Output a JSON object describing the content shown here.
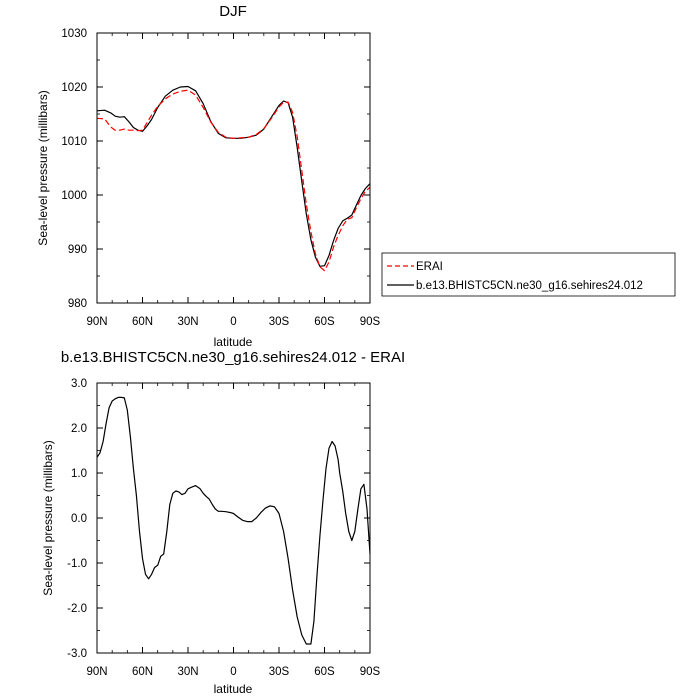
{
  "chart_data": [
    {
      "type": "line",
      "title": "DJF",
      "xlabel": "latitude",
      "ylabel": "Sea-level pressure (millibars)",
      "xlim": [
        90,
        -90
      ],
      "ylim": [
        980,
        1030
      ],
      "x_ticks": [
        90,
        60,
        30,
        0,
        -30,
        -60,
        -90
      ],
      "x_tick_labels": [
        "90N",
        "60N",
        "30N",
        "0",
        "30S",
        "60S",
        "90S"
      ],
      "y_ticks": [
        980,
        990,
        1000,
        1010,
        1020,
        1030
      ],
      "y_tick_labels": [
        "980",
        "990",
        "1000",
        "1010",
        "1020",
        "1030"
      ],
      "grid": false,
      "legend_position": "outside-right",
      "series": [
        {
          "name": "ERAI",
          "color": "#ff0000",
          "dash": "dashed",
          "x": [
            90,
            85,
            81,
            78,
            75,
            72,
            69,
            66,
            63,
            60,
            57,
            54,
            50,
            45,
            40,
            35,
            30,
            25,
            20,
            15,
            10,
            5,
            0,
            -5,
            -10,
            -15,
            -20,
            -25,
            -30,
            -33,
            -36,
            -39,
            -42,
            -45,
            -48,
            -51,
            -54,
            -57,
            -60,
            -63,
            -66,
            -69,
            -72,
            -75,
            -78,
            -81,
            -84,
            -87,
            -90
          ],
          "y": [
            1014.2,
            1014.1,
            1012.6,
            1012.0,
            1012.0,
            1012.2,
            1012.0,
            1012.0,
            1011.9,
            1012.0,
            1013.4,
            1014.8,
            1016.4,
            1017.8,
            1018.7,
            1019.2,
            1019.4,
            1018.5,
            1016.2,
            1013.5,
            1011.6,
            1010.7,
            1010.5,
            1010.6,
            1010.7,
            1011.2,
            1012.3,
            1014.2,
            1016.3,
            1017.2,
            1017.2,
            1015.3,
            1010.8,
            1004.5,
            998.3,
            993.2,
            989.1,
            986.7,
            986.0,
            987.6,
            990.4,
            992.5,
            994.3,
            995.5,
            995.8,
            997.6,
            999.3,
            1000.7,
            1001.4
          ]
        },
        {
          "name": "b.e13.BHISTC5CN.ne30_g16.sehires24.012",
          "color": "#000000",
          "dash": "solid",
          "x": [
            90,
            85,
            81,
            78,
            75,
            72,
            69,
            66,
            63,
            60,
            57,
            54,
            50,
            45,
            40,
            35,
            30,
            25,
            20,
            15,
            10,
            5,
            0,
            -5,
            -10,
            -15,
            -20,
            -25,
            -30,
            -33,
            -36,
            -39,
            -42,
            -45,
            -48,
            -51,
            -54,
            -57,
            -60,
            -63,
            -66,
            -69,
            -72,
            -75,
            -78,
            -81,
            -84,
            -87,
            -90
          ],
          "y": [
            1015.6,
            1015.7,
            1015.2,
            1014.6,
            1014.4,
            1014.5,
            1013.6,
            1012.5,
            1012.0,
            1011.8,
            1012.8,
            1014.0,
            1016.2,
            1018.3,
            1019.4,
            1020.0,
            1020.1,
            1019.3,
            1016.9,
            1013.6,
            1011.4,
            1010.6,
            1010.5,
            1010.5,
            1010.7,
            1011.1,
            1012.2,
            1014.4,
            1016.6,
            1017.4,
            1017.1,
            1014.4,
            1008.8,
            1002.5,
            996.5,
            991.7,
            988.5,
            986.8,
            986.9,
            988.8,
            991.6,
            993.8,
            995.2,
            995.7,
            996.3,
            998.1,
            999.9,
            1001.2,
            1002.1
          ]
        }
      ]
    },
    {
      "type": "line",
      "title": "b.e13.BHISTC5CN.ne30_g16.sehires24.012 - ERAI",
      "xlabel": "latitude",
      "ylabel": "Sea-level pressure (millibars)",
      "xlim": [
        90,
        -90
      ],
      "ylim": [
        -3.0,
        3.0
      ],
      "x_ticks": [
        90,
        60,
        30,
        0,
        -30,
        -60,
        -90
      ],
      "x_tick_labels": [
        "90N",
        "60N",
        "30N",
        "0",
        "30S",
        "60S",
        "90S"
      ],
      "y_ticks": [
        -3.0,
        -2.0,
        -1.0,
        0.0,
        1.0,
        2.0,
        3.0
      ],
      "y_tick_labels": [
        "-3.0",
        "-2.0",
        "-1.0",
        "0.0",
        "1.0",
        "2.0",
        "3.0"
      ],
      "grid": false,
      "series": [
        {
          "color": "#000000",
          "dash": "solid",
          "x": [
            90,
            88,
            86,
            84,
            82,
            80,
            78,
            76,
            74,
            72,
            70,
            68,
            66,
            64,
            62,
            60,
            58,
            56,
            54,
            52,
            50,
            48,
            46,
            44,
            42,
            40,
            38,
            36,
            34,
            32,
            30,
            28,
            25,
            22,
            20,
            18,
            16,
            14,
            12,
            10,
            8,
            5,
            2,
            0,
            -3,
            -6,
            -9,
            -12,
            -15,
            -18,
            -21,
            -24,
            -27,
            -30,
            -33,
            -36,
            -39,
            -42,
            -45,
            -48,
            -51,
            -53,
            -55,
            -57,
            -59,
            -61,
            -63,
            -65,
            -67,
            -68,
            -69,
            -70,
            -72,
            -74,
            -76,
            -78,
            -80,
            -82,
            -84,
            -86,
            -88,
            -90
          ],
          "y": [
            1.35,
            1.45,
            1.7,
            2.1,
            2.45,
            2.6,
            2.65,
            2.68,
            2.68,
            2.67,
            2.4,
            1.8,
            1.1,
            0.5,
            -0.3,
            -0.9,
            -1.25,
            -1.35,
            -1.25,
            -1.1,
            -1.05,
            -0.85,
            -0.8,
            -0.3,
            0.3,
            0.55,
            0.6,
            0.58,
            0.52,
            0.55,
            0.65,
            0.68,
            0.72,
            0.65,
            0.55,
            0.48,
            0.42,
            0.3,
            0.2,
            0.15,
            0.15,
            0.14,
            0.12,
            0.1,
            0.02,
            -0.05,
            -0.08,
            -0.08,
            0.0,
            0.12,
            0.22,
            0.27,
            0.25,
            0.1,
            -0.3,
            -0.9,
            -1.6,
            -2.2,
            -2.6,
            -2.8,
            -2.8,
            -2.3,
            -1.3,
            -0.4,
            0.4,
            1.1,
            1.55,
            1.7,
            1.6,
            1.45,
            1.3,
            1.0,
            0.6,
            0.1,
            -0.3,
            -0.5,
            -0.3,
            0.2,
            0.65,
            0.75,
            0.2,
            -0.8
          ]
        }
      ]
    }
  ]
}
